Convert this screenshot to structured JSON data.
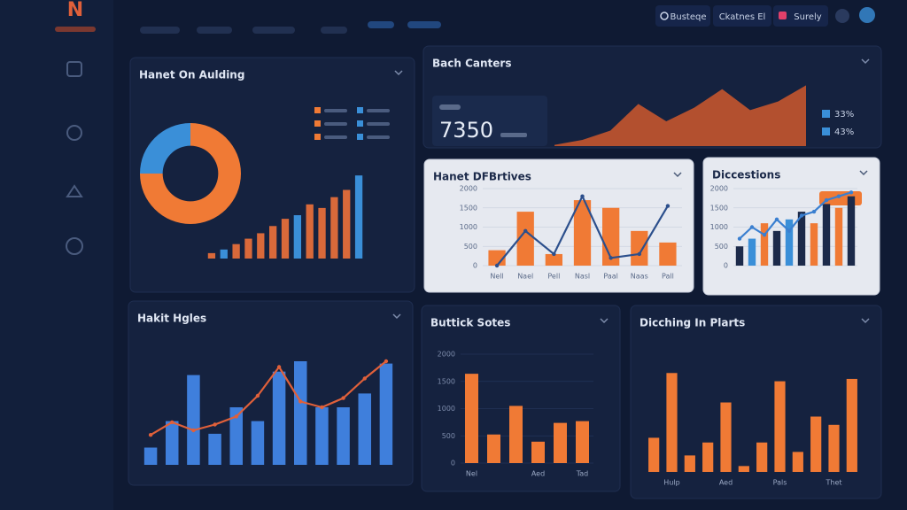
{
  "toolbar": [
    "Busteqe",
    "Ckatnes El",
    "Surely"
  ],
  "panels": [
    {
      "title": "Hanet On Aulding",
      "charts": [
        {
          "type": "pie",
          "values": [
            25,
            75
          ],
          "colors": [
            "#3a8fd8",
            "#f07a35"
          ]
        },
        {
          "type": "bar",
          "values": [
            3,
            5,
            8,
            11,
            14,
            18,
            22,
            24,
            30,
            28,
            34,
            38,
            46
          ],
          "ylim": [
            0,
            50
          ],
          "colors": [
            "#d9693a",
            "#3a8fd8",
            "#d9693a",
            "#d9693a",
            "#d9693a",
            "#d9693a",
            "#d9693a",
            "#3a8fd8",
            "#d9693a",
            "#d9693a",
            "#d9693a",
            "#d9693a",
            "#3a8fd8"
          ]
        }
      ]
    },
    {
      "title": "Bach Canters",
      "kpi": "7350",
      "legend": [
        {
          "label": "33%",
          "color": "#3a8fd8"
        },
        {
          "label": "43%",
          "color": "#3a8fd8"
        }
      ],
      "charts": [
        {
          "type": "area",
          "values": [
            2,
            10,
            25,
            68,
            40,
            62,
            92,
            58,
            72,
            98
          ],
          "color": "#c4552d",
          "ylim": [
            0,
            100
          ]
        }
      ]
    },
    {
      "title": "Hanet DFBrtives",
      "theme": "light",
      "charts": [
        {
          "type": "bar",
          "categories": [
            "Nell",
            "Nael",
            "Pell",
            "Nasl",
            "Paal",
            "Naas",
            "Pall"
          ],
          "values": [
            400,
            1400,
            300,
            1700,
            1500,
            900,
            600
          ],
          "color": "#f07a35",
          "ylim": [
            0,
            2000
          ],
          "yticks": [
            0,
            500,
            1000,
            1500,
            2000
          ]
        },
        {
          "type": "line",
          "values": [
            0,
            900,
            300,
            1800,
            200,
            300,
            1550
          ],
          "color": "#2c4f8c",
          "ylim": [
            0,
            2000
          ]
        }
      ]
    },
    {
      "title": "Diccestions",
      "theme": "light",
      "charts": [
        {
          "type": "bar",
          "values": [
            500,
            700,
            1100,
            900,
            1200,
            1400,
            1100,
            1600,
            1500,
            1800
          ],
          "ylim": [
            0,
            2000
          ],
          "yticks": [
            0,
            500,
            1000,
            1500,
            2000
          ],
          "colors": [
            "#1c2a4a",
            "#3a8fd8",
            "#f07a35",
            "#1c2a4a",
            "#3a8fd8",
            "#1c2a4a",
            "#f07a35",
            "#1c2a4a",
            "#f07a35",
            "#1c2a4a"
          ]
        },
        {
          "type": "line",
          "values": [
            700,
            1000,
            800,
            1200,
            900,
            1300,
            1400,
            1700,
            1800,
            1900
          ],
          "color": "#3a7fd0",
          "ylim": [
            0,
            2000
          ]
        }
      ]
    },
    {
      "title": "Hakit Hgles",
      "charts": [
        {
          "type": "bar",
          "values": [
            15,
            38,
            78,
            27,
            50,
            38,
            81,
            90,
            50,
            50,
            62,
            88
          ],
          "color": "#3f7fdc",
          "ylim": [
            0,
            100
          ]
        },
        {
          "type": "line",
          "values": [
            26,
            37,
            30,
            35,
            42,
            60,
            85,
            55,
            50,
            58,
            75,
            90
          ],
          "color": "#e0603a",
          "ylim": [
            0,
            100
          ]
        }
      ]
    },
    {
      "title": "Buttick Sotes",
      "charts": [
        {
          "type": "bar",
          "categories": [
            "Nel",
            null,
            null,
            "Aed",
            null,
            "Tad"
          ],
          "values": [
            1640,
            525,
            1050,
            393,
            738,
            770
          ],
          "color": "#f07a35",
          "ylim": [
            0,
            2000
          ],
          "yticks": [
            0,
            500,
            1000,
            1500,
            2000
          ]
        }
      ]
    },
    {
      "title": "Dicching In Plarts",
      "charts": [
        {
          "type": "bar",
          "categories": [
            null,
            "Hulp",
            null,
            null,
            "Aed",
            null,
            null,
            "Pals",
            null,
            null,
            "Thet",
            null
          ],
          "values": [
            29,
            84,
            14,
            25,
            59,
            5,
            25,
            77,
            17,
            47,
            40,
            79
          ],
          "color": "#f07a35",
          "ylim": [
            0,
            100
          ]
        }
      ]
    }
  ]
}
